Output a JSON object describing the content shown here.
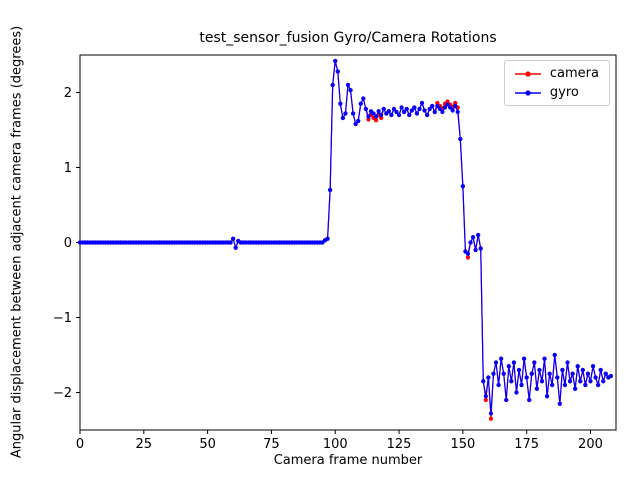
{
  "chart_data": {
    "type": "line",
    "title": "test_sensor_fusion Gyro/Camera Rotations",
    "xlabel": "Camera frame number",
    "ylabel": "Angular displacement between adjacent camera frames (degrees)",
    "xlim": [
      0,
      210
    ],
    "ylim": [
      -2.5,
      2.5
    ],
    "xticks": [
      0,
      25,
      50,
      75,
      100,
      125,
      150,
      175,
      200
    ],
    "yticks": [
      -2,
      -1,
      0,
      1,
      2
    ],
    "grid": false,
    "legend_position": "upper right",
    "x": [
      0,
      1,
      2,
      3,
      4,
      5,
      6,
      7,
      8,
      9,
      10,
      11,
      12,
      13,
      14,
      15,
      16,
      17,
      18,
      19,
      20,
      21,
      22,
      23,
      24,
      25,
      26,
      27,
      28,
      29,
      30,
      31,
      32,
      33,
      34,
      35,
      36,
      37,
      38,
      39,
      40,
      41,
      42,
      43,
      44,
      45,
      46,
      47,
      48,
      49,
      50,
      51,
      52,
      53,
      54,
      55,
      56,
      57,
      58,
      59,
      60,
      61,
      62,
      63,
      64,
      65,
      66,
      67,
      68,
      69,
      70,
      71,
      72,
      73,
      74,
      75,
      76,
      77,
      78,
      79,
      80,
      81,
      82,
      83,
      84,
      85,
      86,
      87,
      88,
      89,
      90,
      91,
      92,
      93,
      94,
      95,
      96,
      97,
      98,
      99,
      100,
      101,
      102,
      103,
      104,
      105,
      106,
      107,
      108,
      109,
      110,
      111,
      112,
      113,
      114,
      115,
      116,
      117,
      118,
      119,
      120,
      121,
      122,
      123,
      124,
      125,
      126,
      127,
      128,
      129,
      130,
      131,
      132,
      133,
      134,
      135,
      136,
      137,
      138,
      139,
      140,
      141,
      142,
      143,
      144,
      145,
      146,
      147,
      148,
      149,
      150,
      151,
      152,
      153,
      154,
      155,
      156,
      157,
      158,
      159,
      160,
      161,
      162,
      163,
      164,
      165,
      166,
      167,
      168,
      169,
      170,
      171,
      172,
      173,
      174,
      175,
      176,
      177,
      178,
      179,
      180,
      181,
      182,
      183,
      184,
      185,
      186,
      187,
      188,
      189,
      190,
      191,
      192,
      193,
      194,
      195,
      196,
      197,
      198,
      199,
      200,
      201,
      202,
      203,
      204,
      205,
      206,
      207,
      208
    ],
    "series": [
      {
        "name": "camera",
        "color": "#ff0000",
        "marker": "o",
        "values": [
          0,
          0,
          0,
          0,
          0,
          0,
          0,
          0,
          0,
          0,
          0,
          0,
          0,
          0,
          0,
          0,
          0,
          0,
          0,
          0,
          0,
          0,
          0,
          0,
          0,
          0,
          0,
          0,
          0,
          0,
          0,
          0,
          0,
          0,
          0,
          0,
          0,
          0,
          0,
          0,
          0,
          0,
          0,
          0,
          0,
          0,
          0,
          0,
          0,
          0,
          0,
          0,
          0,
          0,
          0,
          0,
          0,
          0,
          0,
          0,
          0.05,
          -0.07,
          0.02,
          0,
          0,
          0,
          0,
          0,
          0,
          0,
          0,
          0,
          0,
          0,
          0,
          0,
          0,
          0,
          0,
          0,
          0,
          0,
          0,
          0,
          0,
          0,
          0,
          0,
          0,
          0,
          0,
          0,
          0,
          0,
          0,
          0,
          0.03,
          0.05,
          0.7,
          2.1,
          2.42,
          2.28,
          1.85,
          1.66,
          1.72,
          2.1,
          2.03,
          1.72,
          1.58,
          1.62,
          1.85,
          1.92,
          1.78,
          1.64,
          1.7,
          1.66,
          1.63,
          1.7,
          1.66,
          1.78,
          1.72,
          1.75,
          1.7,
          1.78,
          1.74,
          1.7,
          1.8,
          1.74,
          1.78,
          1.7,
          1.76,
          1.8,
          1.72,
          1.78,
          1.86,
          1.76,
          1.7,
          1.78,
          1.82,
          1.74,
          1.86,
          1.82,
          1.79,
          1.85,
          1.88,
          1.84,
          1.81,
          1.86,
          1.8,
          1.38,
          0.75,
          -0.12,
          -0.2,
          0,
          0.07,
          -0.1,
          0.1,
          -0.08,
          -1.85,
          -2.1,
          -1.8,
          -2.35,
          -1.75,
          -1.6,
          -1.9,
          -1.55,
          -1.75,
          -2.1,
          -1.65,
          -1.85,
          -1.6,
          -2.0,
          -1.7,
          -1.9,
          -1.55,
          -1.8,
          -2.1,
          -1.75,
          -1.6,
          -1.95,
          -1.7,
          -1.85,
          -1.55,
          -2.05,
          -1.75,
          -1.9,
          -1.5,
          -1.8,
          -2.15,
          -1.7,
          -1.9,
          -1.6,
          -1.85,
          -1.75,
          -1.95,
          -1.65,
          -1.85,
          -1.7,
          -1.9,
          -1.75,
          -1.85,
          -1.65,
          -1.8,
          -1.9,
          -1.7,
          -1.85,
          -1.75,
          -1.8,
          -1.78
        ]
      },
      {
        "name": "gyro",
        "color": "#0000ff",
        "marker": "o",
        "values": [
          0,
          0,
          0,
          0,
          0,
          0,
          0,
          0,
          0,
          0,
          0,
          0,
          0,
          0,
          0,
          0,
          0,
          0,
          0,
          0,
          0,
          0,
          0,
          0,
          0,
          0,
          0,
          0,
          0,
          0,
          0,
          0,
          0,
          0,
          0,
          0,
          0,
          0,
          0,
          0,
          0,
          0,
          0,
          0,
          0,
          0,
          0,
          0,
          0,
          0,
          0,
          0,
          0,
          0,
          0,
          0,
          0,
          0,
          0,
          0,
          0.05,
          -0.07,
          0.02,
          0,
          0,
          0,
          0,
          0,
          0,
          0,
          0,
          0,
          0,
          0,
          0,
          0,
          0,
          0,
          0,
          0,
          0,
          0,
          0,
          0,
          0,
          0,
          0,
          0,
          0,
          0,
          0,
          0,
          0,
          0,
          0,
          0,
          0.03,
          0.05,
          0.7,
          2.1,
          2.42,
          2.28,
          1.85,
          1.66,
          1.72,
          2.1,
          2.03,
          1.72,
          1.58,
          1.62,
          1.85,
          1.92,
          1.78,
          1.68,
          1.75,
          1.72,
          1.68,
          1.75,
          1.7,
          1.78,
          1.72,
          1.75,
          1.7,
          1.78,
          1.74,
          1.7,
          1.8,
          1.74,
          1.78,
          1.7,
          1.76,
          1.8,
          1.72,
          1.78,
          1.86,
          1.76,
          1.7,
          1.78,
          1.82,
          1.74,
          1.82,
          1.78,
          1.74,
          1.8,
          1.84,
          1.8,
          1.76,
          1.82,
          1.74,
          1.38,
          0.75,
          -0.12,
          -0.15,
          0,
          0.07,
          -0.1,
          0.1,
          -0.08,
          -1.85,
          -2.05,
          -1.8,
          -2.28,
          -1.75,
          -1.6,
          -1.9,
          -1.55,
          -1.75,
          -2.1,
          -1.65,
          -1.85,
          -1.6,
          -2.0,
          -1.7,
          -1.9,
          -1.55,
          -1.8,
          -2.1,
          -1.75,
          -1.6,
          -1.95,
          -1.7,
          -1.85,
          -1.55,
          -2.05,
          -1.75,
          -1.9,
          -1.5,
          -1.8,
          -2.15,
          -1.7,
          -1.9,
          -1.6,
          -1.85,
          -1.75,
          -1.95,
          -1.65,
          -1.85,
          -1.7,
          -1.9,
          -1.75,
          -1.85,
          -1.65,
          -1.8,
          -1.9,
          -1.7,
          -1.85,
          -1.75,
          -1.8,
          -1.78
        ]
      }
    ]
  }
}
